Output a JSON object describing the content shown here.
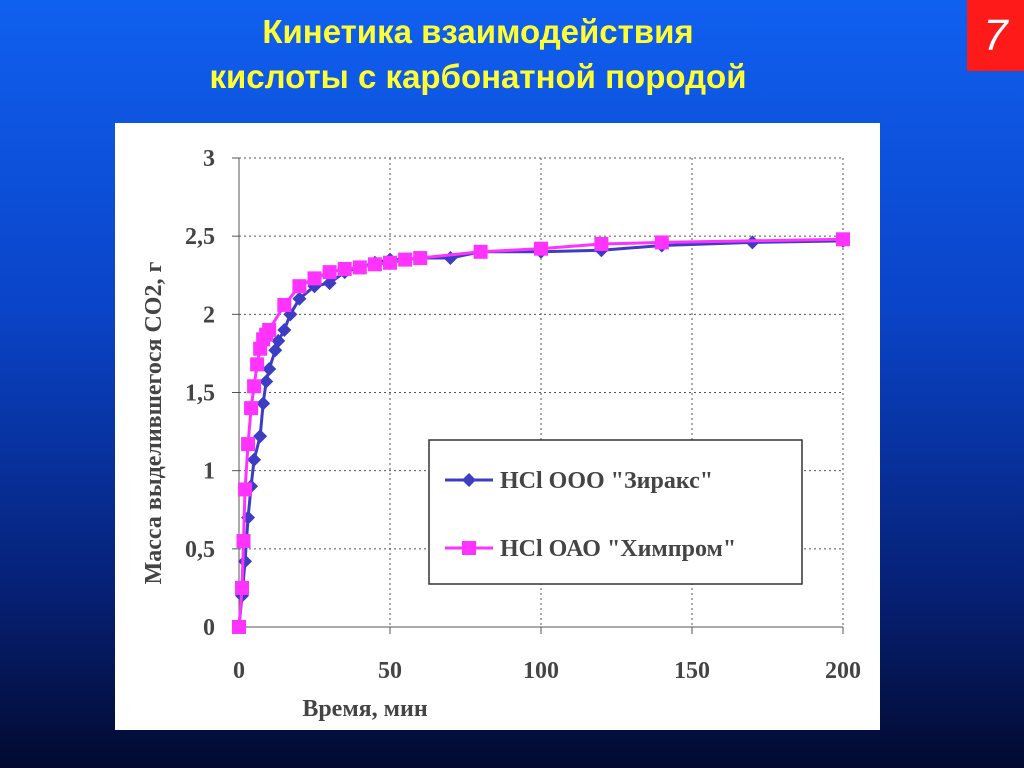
{
  "slide": {
    "title_lines": [
      "Кинетика взаимодействия",
      "кислоты с карбонатной породой"
    ],
    "page_number": "7"
  },
  "chart_data": {
    "type": "line",
    "x_label": "Время, мин",
    "y_label": "Масса выделившегося СО2, г",
    "xlim": [
      0,
      200
    ],
    "xticks": [
      0,
      50,
      100,
      150,
      200
    ],
    "ylim": [
      0,
      3
    ],
    "yticks": [
      0,
      {
        "value": 0.5,
        "label": "0,5"
      },
      1,
      {
        "value": 1.5,
        "label": "1,5"
      },
      2,
      {
        "value": 2.5,
        "label": "2,5"
      },
      3
    ],
    "grid": true,
    "series": [
      {
        "name": "HCl ООО \"Зиракс\"",
        "color": "#3d3dc4",
        "marker": "diamond",
        "x": [
          0,
          1,
          2,
          3,
          4,
          5,
          7,
          8,
          9,
          10,
          12,
          13,
          15,
          17,
          20,
          25,
          30,
          35,
          40,
          45,
          50,
          55,
          60,
          70,
          80,
          100,
          120,
          140,
          170,
          200
        ],
        "values": [
          0,
          0.2,
          0.42,
          0.7,
          0.9,
          1.07,
          1.22,
          1.43,
          1.57,
          1.65,
          1.77,
          1.83,
          1.9,
          2.0,
          2.1,
          2.18,
          2.2,
          2.27,
          2.3,
          2.33,
          2.35,
          2.35,
          2.36,
          2.36,
          2.4,
          2.4,
          2.41,
          2.44,
          2.46,
          2.47
        ]
      },
      {
        "name": "HCl ОАО \"Химпром\"",
        "color": "#ff33ff",
        "marker": "square",
        "x": [
          0,
          1,
          1.5,
          2,
          3,
          4,
          5,
          6,
          7,
          8,
          9,
          10,
          15,
          20,
          25,
          30,
          35,
          40,
          45,
          50,
          55,
          60,
          80,
          100,
          120,
          140,
          200
        ],
        "values": [
          0,
          0.25,
          0.55,
          0.88,
          1.17,
          1.4,
          1.54,
          1.68,
          1.78,
          1.84,
          1.87,
          1.9,
          2.06,
          2.18,
          2.23,
          2.27,
          2.29,
          2.3,
          2.32,
          2.33,
          2.35,
          2.36,
          2.4,
          2.42,
          2.45,
          2.46,
          2.48
        ]
      }
    ]
  }
}
